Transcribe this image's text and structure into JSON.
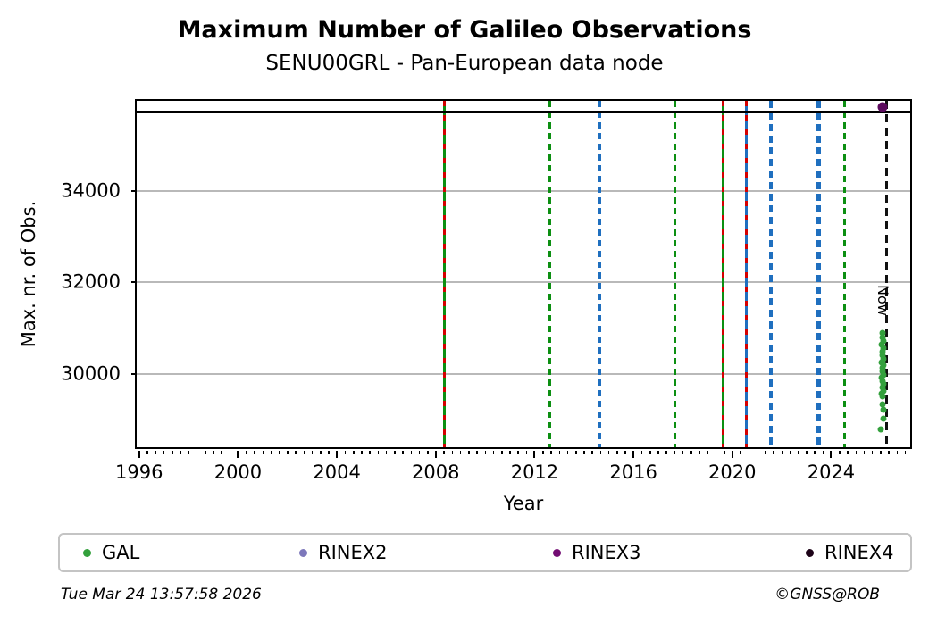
{
  "title": "Maximum Number of Galileo Observations",
  "subtitle": "SENU00GRL - Pan-European data node",
  "footer": {
    "timestamp": "Tue Mar 24 13:57:58 2026",
    "credit": "©GNSS@ROB"
  },
  "legend": [
    {
      "label": "GAL",
      "color": "#33a03c"
    },
    {
      "label": "RINEX2",
      "color": "#7d78bb"
    },
    {
      "label": "RINEX3",
      "color": "#730d73"
    },
    {
      "label": "RINEX4",
      "color": "#1d0318"
    }
  ],
  "chart_data": {
    "type": "scatter",
    "title": "Maximum Number of Galileo Observations",
    "subtitle": "SENU00GRL - Pan-European data node",
    "xlabel": "Year",
    "ylabel": "Max. nr. of Obs.",
    "xlim": [
      1995.9,
      2027.2
    ],
    "ylim": [
      28400,
      35960
    ],
    "x_ticks": [
      1996,
      2000,
      2004,
      2008,
      2012,
      2016,
      2020,
      2024
    ],
    "x_minor_tick_step_years": 0.3333,
    "y_ticks": [
      30000,
      32000,
      34000
    ],
    "grid": "horizontal-gray",
    "legend_position": "bottom",
    "max_obs_hline_value": 35720,
    "now_line": {
      "year": 2026.23,
      "label": "Now",
      "color": "black",
      "style": "dashed"
    },
    "event_lines": [
      {
        "year": 2008.35,
        "color": "green",
        "style": "solid-with-red-dashes"
      },
      {
        "year": 2012.63,
        "color": "green",
        "style": "dashed"
      },
      {
        "year": 2014.64,
        "color": "blue",
        "style": "dashed"
      },
      {
        "year": 2017.67,
        "color": "green",
        "style": "dashed"
      },
      {
        "year": 2019.61,
        "color": "green",
        "style": "solid-with-red-dashes"
      },
      {
        "year": 2020.58,
        "color": "blue",
        "style": "solid-with-red-dashes"
      },
      {
        "year": 2021.56,
        "color": "blue",
        "style": "dashed-thick"
      },
      {
        "year": 2023.5,
        "color": "blue",
        "style": "dashed-thick"
      },
      {
        "year": 2024.54,
        "color": "green",
        "style": "dashed"
      }
    ],
    "series": [
      {
        "name": "GAL",
        "color": "#33a03c",
        "marker_px": 7,
        "points": [
          [
            2026.09,
            30896
          ],
          [
            2026.07,
            30799
          ],
          [
            2026.11,
            30722
          ],
          [
            2026.06,
            30645
          ],
          [
            2026.12,
            30568
          ],
          [
            2026.09,
            30491
          ],
          [
            2026.07,
            30414
          ],
          [
            2026.11,
            30337
          ],
          [
            2026.06,
            30260
          ],
          [
            2026.12,
            30183
          ],
          [
            2026.09,
            30125
          ],
          [
            2026.07,
            30048
          ],
          [
            2026.11,
            29971
          ],
          [
            2026.06,
            29913
          ],
          [
            2026.09,
            29836
          ],
          [
            2026.12,
            29779
          ],
          [
            2026.07,
            29702
          ],
          [
            2026.11,
            29625
          ],
          [
            2026.05,
            29567
          ],
          [
            2026.09,
            29509
          ],
          [
            2026.07,
            29336
          ],
          [
            2026.13,
            29220
          ],
          [
            2026.1,
            29028
          ],
          [
            2026.02,
            28797
          ]
        ]
      },
      {
        "name": "RINEX3",
        "color": "#5c0a5e",
        "marker_px": 11,
        "points": [
          [
            2026.08,
            35826
          ]
        ]
      }
    ]
  }
}
